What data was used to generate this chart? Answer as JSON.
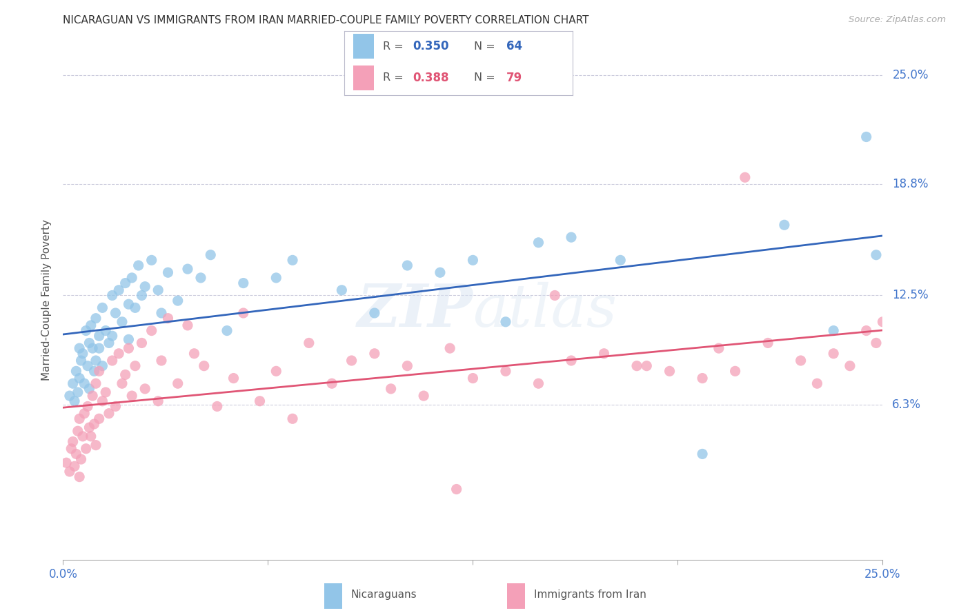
{
  "title": "NICARAGUAN VS IMMIGRANTS FROM IRAN MARRIED-COUPLE FAMILY POVERTY CORRELATION CHART",
  "source": "Source: ZipAtlas.com",
  "ylabel": "Married-Couple Family Poverty",
  "ytick_values": [
    6.3,
    12.5,
    18.8,
    25.0
  ],
  "ytick_labels": [
    "6.3%",
    "12.5%",
    "18.8%",
    "25.0%"
  ],
  "xmin": 0.0,
  "xmax": 25.0,
  "ymin": -2.5,
  "ymax": 27.0,
  "blue_color": "#92C5E8",
  "pink_color": "#F4A0B8",
  "blue_line_color": "#3366BB",
  "pink_line_color": "#E05575",
  "legend_label_blue": "Nicaraguans",
  "legend_label_pink": "Immigrants from Iran",
  "watermark": "ZIPatlas",
  "blue_x": [
    0.2,
    0.3,
    0.35,
    0.4,
    0.45,
    0.5,
    0.5,
    0.55,
    0.6,
    0.65,
    0.7,
    0.75,
    0.8,
    0.8,
    0.85,
    0.9,
    0.95,
    1.0,
    1.0,
    1.1,
    1.1,
    1.2,
    1.2,
    1.3,
    1.4,
    1.5,
    1.5,
    1.6,
    1.7,
    1.8,
    1.9,
    2.0,
    2.0,
    2.1,
    2.2,
    2.3,
    2.4,
    2.5,
    2.7,
    2.9,
    3.0,
    3.2,
    3.5,
    3.8,
    4.2,
    4.5,
    5.0,
    5.5,
    6.5,
    7.0,
    8.5,
    9.5,
    10.5,
    11.5,
    12.5,
    13.5,
    14.5,
    15.5,
    17.0,
    19.5,
    22.0,
    23.5,
    24.5,
    24.8
  ],
  "blue_y": [
    6.8,
    7.5,
    6.5,
    8.2,
    7.0,
    9.5,
    7.8,
    8.8,
    9.2,
    7.5,
    10.5,
    8.5,
    9.8,
    7.2,
    10.8,
    9.5,
    8.2,
    11.2,
    8.8,
    10.2,
    9.5,
    11.8,
    8.5,
    10.5,
    9.8,
    12.5,
    10.2,
    11.5,
    12.8,
    11.0,
    13.2,
    12.0,
    10.0,
    13.5,
    11.8,
    14.2,
    12.5,
    13.0,
    14.5,
    12.8,
    11.5,
    13.8,
    12.2,
    14.0,
    13.5,
    14.8,
    10.5,
    13.2,
    13.5,
    14.5,
    12.8,
    11.5,
    14.2,
    13.8,
    14.5,
    11.0,
    15.5,
    15.8,
    14.5,
    3.5,
    16.5,
    10.5,
    21.5,
    14.8
  ],
  "pink_x": [
    0.1,
    0.2,
    0.25,
    0.3,
    0.35,
    0.4,
    0.45,
    0.5,
    0.5,
    0.55,
    0.6,
    0.65,
    0.7,
    0.75,
    0.8,
    0.85,
    0.9,
    0.95,
    1.0,
    1.0,
    1.1,
    1.1,
    1.2,
    1.3,
    1.4,
    1.5,
    1.6,
    1.7,
    1.8,
    1.9,
    2.0,
    2.1,
    2.2,
    2.4,
    2.5,
    2.7,
    2.9,
    3.0,
    3.2,
    3.5,
    3.8,
    4.0,
    4.3,
    4.7,
    5.2,
    5.5,
    6.0,
    6.5,
    7.0,
    7.5,
    8.2,
    8.8,
    9.5,
    10.0,
    10.5,
    11.0,
    11.8,
    12.5,
    13.5,
    14.5,
    15.5,
    16.5,
    17.5,
    18.5,
    19.5,
    20.0,
    20.5,
    21.5,
    22.5,
    23.0,
    23.5,
    24.0,
    24.5,
    24.8,
    25.0,
    20.8,
    17.8,
    15.0,
    12.0
  ],
  "pink_y": [
    3.0,
    2.5,
    3.8,
    4.2,
    2.8,
    3.5,
    4.8,
    2.2,
    5.5,
    3.2,
    4.5,
    5.8,
    3.8,
    6.2,
    5.0,
    4.5,
    6.8,
    5.2,
    7.5,
    4.0,
    8.2,
    5.5,
    6.5,
    7.0,
    5.8,
    8.8,
    6.2,
    9.2,
    7.5,
    8.0,
    9.5,
    6.8,
    8.5,
    9.8,
    7.2,
    10.5,
    6.5,
    8.8,
    11.2,
    7.5,
    10.8,
    9.2,
    8.5,
    6.2,
    7.8,
    11.5,
    6.5,
    8.2,
    5.5,
    9.8,
    7.5,
    8.8,
    9.2,
    7.2,
    8.5,
    6.8,
    9.5,
    7.8,
    8.2,
    7.5,
    8.8,
    9.2,
    8.5,
    8.2,
    7.8,
    9.5,
    8.2,
    9.8,
    8.8,
    7.5,
    9.2,
    8.5,
    10.5,
    9.8,
    11.0,
    19.2,
    8.5,
    12.5,
    1.5
  ]
}
